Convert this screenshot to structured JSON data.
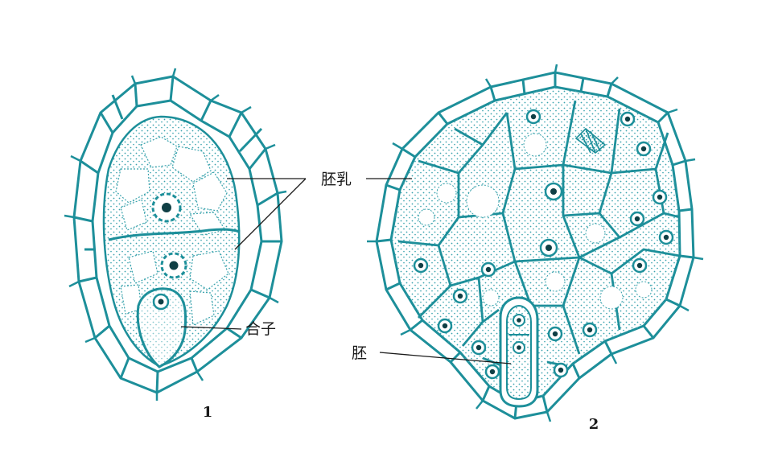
{
  "figure": {
    "ink_color": "#1d8f9a",
    "dot_color": "#3aa3ad",
    "nucleus_color": "#0f3f45",
    "label_color": "#1a1a1a",
    "labels": {
      "endosperm": "胚乳",
      "zygote": "合子",
      "embryo": "胚"
    },
    "panel_numbers": [
      "1",
      "2"
    ]
  }
}
